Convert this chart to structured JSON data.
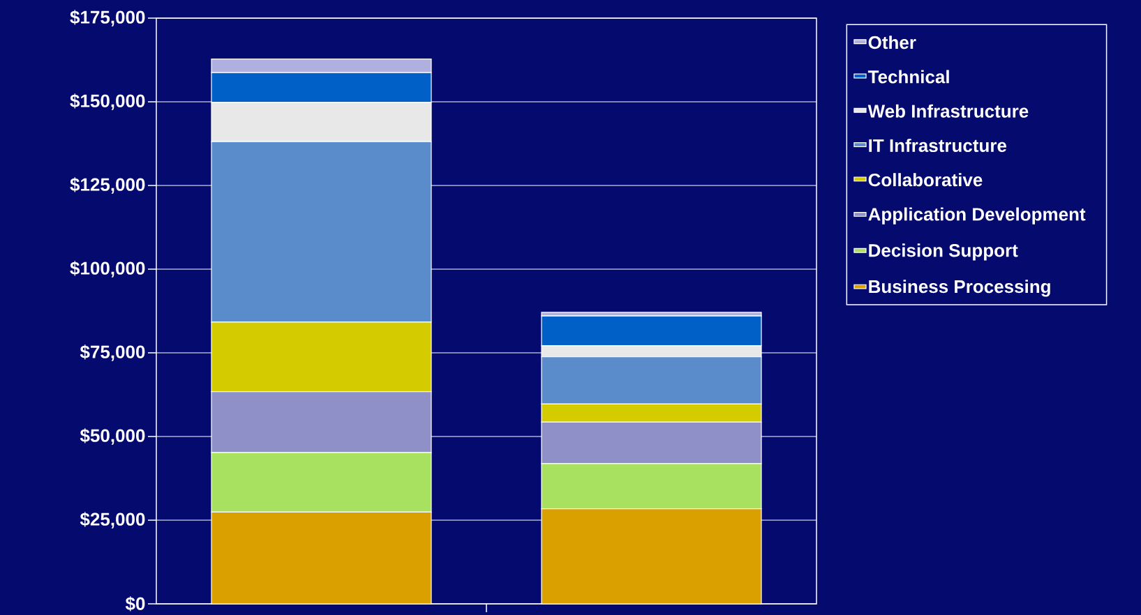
{
  "chart_data": {
    "type": "bar",
    "stacked": true,
    "categories": [
      null,
      null
    ],
    "series": [
      {
        "name": "Business Processing",
        "color": "#d9a000",
        "values": [
          27400,
          28400
        ]
      },
      {
        "name": "Decision Support",
        "color": "#a8e060",
        "values": [
          17800,
          13500
        ]
      },
      {
        "name": "Application Development",
        "color": "#9090c8",
        "values": [
          18200,
          12400
        ]
      },
      {
        "name": "Collaborative",
        "color": "#d4cc00",
        "values": [
          20800,
          5400
        ]
      },
      {
        "name": "IT Infrastructure",
        "color": "#5a8ccc",
        "values": [
          53900,
          14100
        ]
      },
      {
        "name": "Web Infrastructure",
        "color": "#e8e8e8",
        "values": [
          11700,
          3300
        ]
      },
      {
        "name": "Technical",
        "color": "#0060c8",
        "values": [
          8900,
          8900
        ]
      },
      {
        "name": "Other",
        "color": "#b0b0e0",
        "values": [
          4100,
          1100
        ]
      }
    ],
    "ylim": [
      0,
      175000
    ],
    "yticks": [
      {
        "value": 0,
        "label": "$0"
      },
      {
        "value": 25000,
        "label": "$25,000"
      },
      {
        "value": 50000,
        "label": "$50,000"
      },
      {
        "value": 75000,
        "label": "$75,000"
      },
      {
        "value": 100000,
        "label": "$100,000"
      },
      {
        "value": 125000,
        "label": "$125,000"
      },
      {
        "value": 150000,
        "label": "$150,000"
      },
      {
        "value": 175000,
        "label": "$175,000"
      }
    ],
    "grid": "y",
    "legend": "right"
  }
}
